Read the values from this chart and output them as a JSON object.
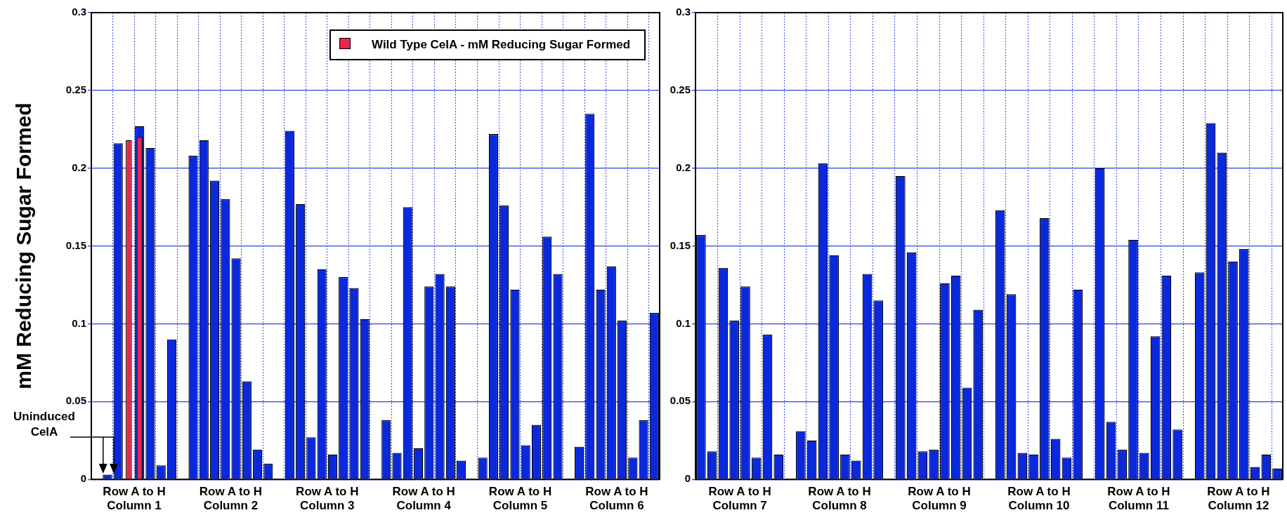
{
  "chart_data": [
    {
      "type": "bar",
      "ylabel": "mM Reducing Sugar Formed",
      "ylim": [
        0,
        0.3
      ],
      "yticks": [
        0,
        0.05,
        0.1,
        0.15,
        0.2,
        0.25,
        0.3
      ],
      "grid": true,
      "legend": "top right",
      "categories": [
        null,
        null,
        null,
        "Row A to H\nColumn 1",
        null,
        null,
        null,
        null,
        null,
        null,
        null,
        null,
        "Row A to H\nColumn 2",
        null,
        null,
        null,
        null,
        null,
        null,
        null,
        null,
        "Row A to H\nColumn 3",
        null,
        null,
        null,
        null,
        null,
        null,
        null,
        null,
        "Row A to H\nColumn 4",
        null,
        null,
        null,
        null,
        null,
        null,
        null,
        null,
        "Row A to H\nColumn 5",
        null,
        null,
        null,
        null,
        null,
        null,
        null,
        null,
        "Row A to H\nColumn 6",
        null,
        null,
        null,
        null
      ],
      "series": [
        {
          "color": "#0a28dc",
          "values": [
            null,
            0.003,
            0.216,
            null,
            0.227,
            0.213,
            0.009,
            0.09,
            null,
            0.208,
            0.218,
            0.192,
            0.18,
            0.142,
            0.063,
            0.019,
            0.01,
            null,
            0.224,
            0.177,
            0.027,
            0.135,
            0.016,
            0.13,
            0.123,
            0.103,
            null,
            0.038,
            0.017,
            0.175,
            0.02,
            0.124,
            0.132,
            0.124,
            0.012,
            null,
            0.014,
            0.222,
            0.176,
            0.122,
            0.022,
            0.035,
            0.156,
            0.132,
            null,
            0.021,
            0.235,
            0.122,
            0.137,
            0.102,
            0.014,
            0.038,
            0.107
          ]
        },
        {
          "name": "Wild Type CelA - mM Reducing Sugar Formed",
          "color": "#e8284c",
          "values": [
            null,
            null,
            null,
            0.218,
            0.22,
            null,
            null,
            null,
            null,
            null,
            null,
            null,
            null,
            null,
            null,
            null,
            null,
            null,
            null,
            null,
            null,
            null,
            null,
            null,
            null,
            null,
            null,
            null,
            null,
            null,
            null,
            null,
            null,
            null,
            null,
            null,
            null,
            null,
            null,
            null,
            null,
            null,
            null,
            null,
            null,
            null,
            null,
            null,
            null,
            null,
            null,
            null,
            null
          ]
        }
      ],
      "annotations": [
        "Uninduced CelA"
      ]
    },
    {
      "type": "bar",
      "ylim": [
        0,
        0.3
      ],
      "yticks": [
        0,
        0.05,
        0.1,
        0.15,
        0.2,
        0.25,
        0.3
      ],
      "grid": true,
      "categories": [
        null,
        null,
        null,
        "Row A to H\nColumn 7",
        null,
        null,
        null,
        null,
        null,
        null,
        null,
        null,
        "Row A to H\nColumn 8",
        null,
        null,
        null,
        null,
        null,
        null,
        null,
        null,
        "Row A to H\nColumn 9",
        null,
        null,
        null,
        null,
        null,
        null,
        null,
        null,
        "Row A to H\nColumn 10",
        null,
        null,
        null,
        null,
        null,
        null,
        null,
        null,
        "Row A to H\nColumn 11",
        null,
        null,
        null,
        null,
        null,
        null,
        null,
        null,
        "Row A to H\nColumn 12",
        null,
        null,
        null,
        null
      ],
      "series": [
        {
          "color": "#0a28dc",
          "values": [
            0.157,
            0.018,
            0.136,
            0.102,
            0.124,
            0.014,
            0.093,
            0.016,
            null,
            0.031,
            0.025,
            0.203,
            0.144,
            0.016,
            0.012,
            0.132,
            0.115,
            null,
            0.195,
            0.146,
            0.018,
            0.019,
            0.126,
            0.131,
            0.059,
            0.109,
            null,
            0.173,
            0.119,
            0.017,
            0.016,
            0.168,
            0.026,
            0.014,
            0.122,
            null,
            0.2,
            0.037,
            0.019,
            0.154,
            0.017,
            0.092,
            0.131,
            0.032,
            null,
            0.133,
            0.229,
            0.21,
            0.14,
            0.148,
            0.008,
            0.016,
            0.007
          ]
        }
      ]
    }
  ]
}
